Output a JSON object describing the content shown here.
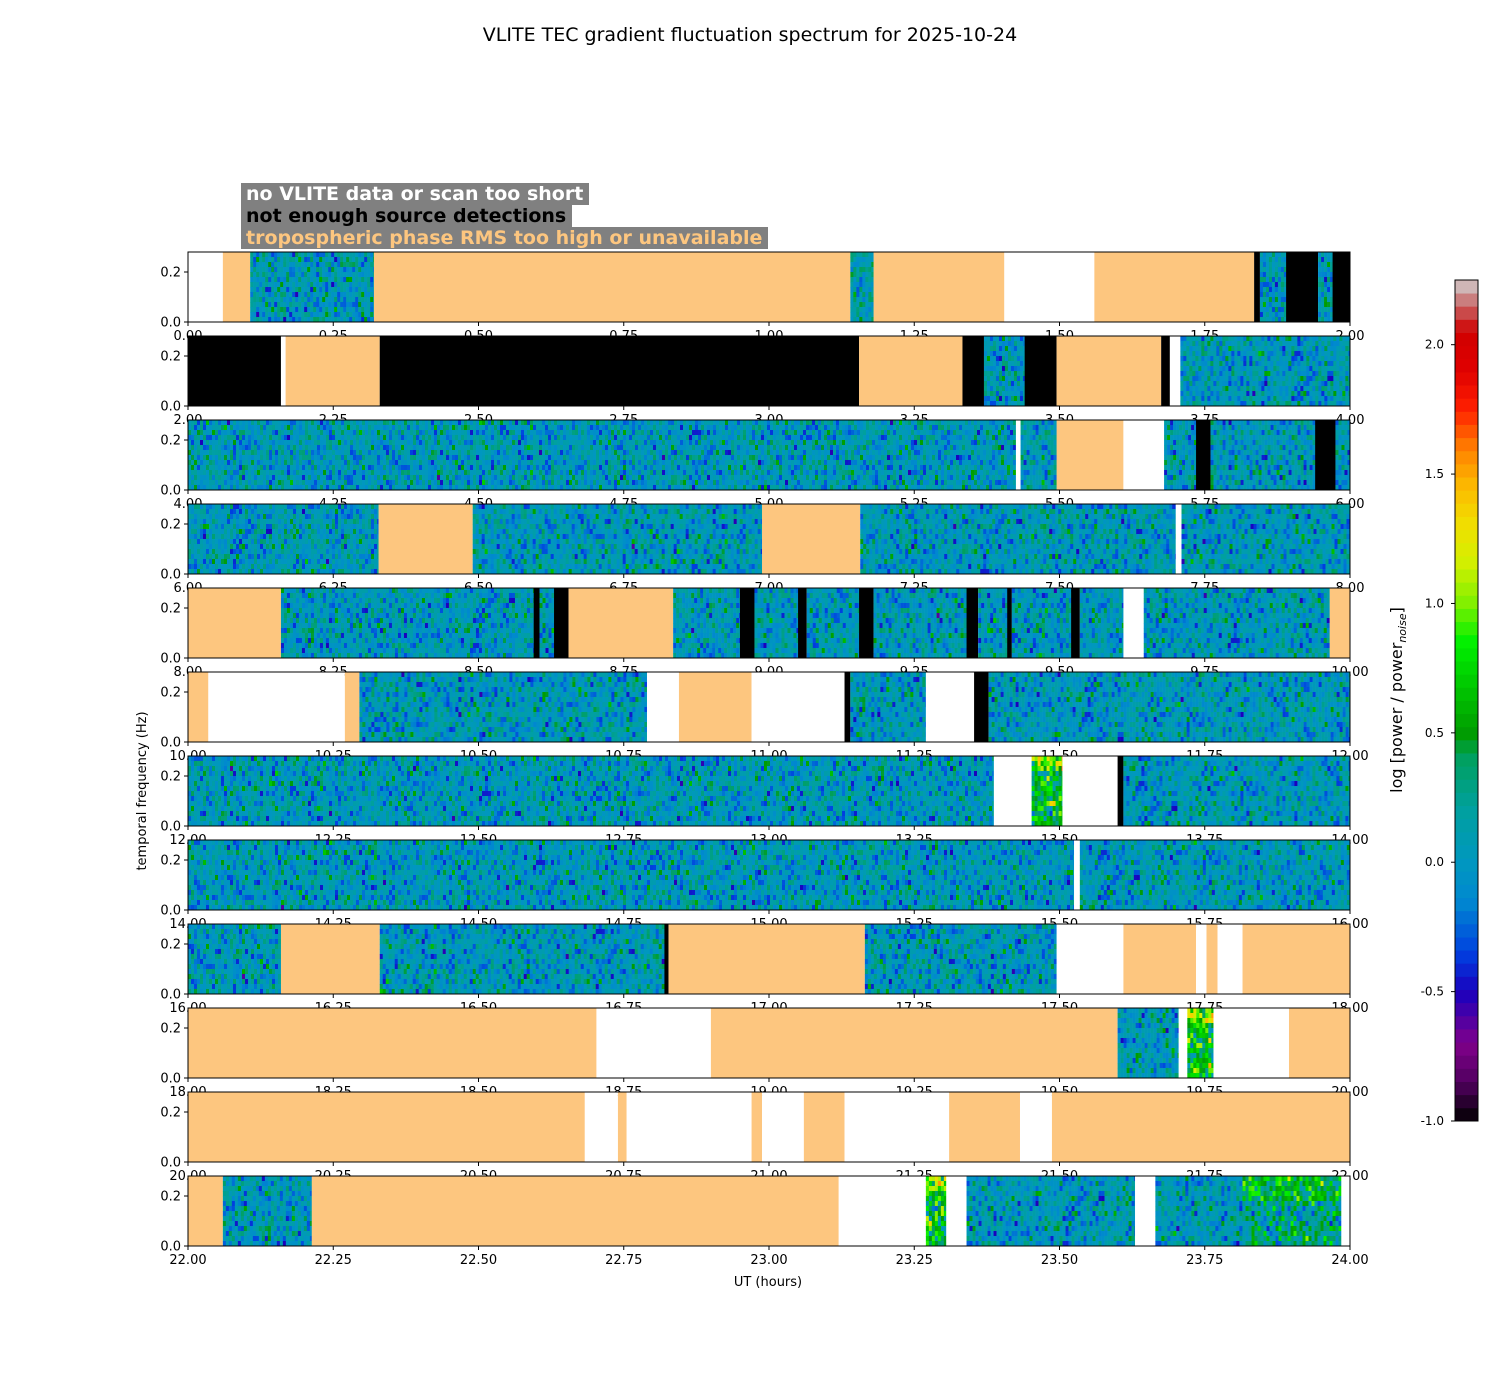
{
  "chart_data": {
    "type": "heatmap",
    "title": "VLITE TEC gradient fluctuation spectrum for 2025-10-24",
    "xlabel": "UT (hours)",
    "ylabel": "temporal frequency (Hz)",
    "colorbar_label": "log [power / power",
    "colorbar_label_sub": "noise",
    "colorbar_label_end": "]",
    "colorbar_range": [
      -1.0,
      2.25
    ],
    "colorbar_ticks": [
      "-1.0",
      "-0.5",
      "0.0",
      "0.5",
      "1.0",
      "1.5",
      "2.0"
    ],
    "colorbar_tick_values": [
      -1.0,
      -0.5,
      0.0,
      0.5,
      1.0,
      1.5,
      2.0
    ],
    "ylim": [
      0,
      0.28
    ],
    "y_ticks": [
      "0.0",
      "0.2"
    ],
    "y_tick_values": [
      0.0,
      0.2
    ],
    "legend": {
      "no_data": "no VLITE data or scan too short",
      "few_sources": "not enough source detections",
      "tropo": "tropospheric phase RMS too high or unavailable"
    },
    "category_colors": {
      "no_data": "#ffffff",
      "few_sources": "#000000",
      "tropo": "#fdc67f",
      "legend_box": "#808080"
    },
    "colormap": [
      [
        -1.0,
        "#000000"
      ],
      [
        -0.85,
        "#50005f"
      ],
      [
        -0.7,
        "#80008a"
      ],
      [
        -0.5,
        "#1a00bd"
      ],
      [
        -0.35,
        "#0040e0"
      ],
      [
        -0.15,
        "#0088d0"
      ],
      [
        0.0,
        "#0097c0"
      ],
      [
        0.2,
        "#00a0a0"
      ],
      [
        0.4,
        "#00a060"
      ],
      [
        0.5,
        "#009c00"
      ],
      [
        0.65,
        "#00c000"
      ],
      [
        0.85,
        "#00f000"
      ],
      [
        1.0,
        "#80f000"
      ],
      [
        1.15,
        "#d0f000"
      ],
      [
        1.3,
        "#f0e000"
      ],
      [
        1.45,
        "#fcbb00"
      ],
      [
        1.6,
        "#ff8000"
      ],
      [
        1.75,
        "#ff2000"
      ],
      [
        1.9,
        "#e00000"
      ],
      [
        2.05,
        "#d00000"
      ],
      [
        2.15,
        "#c86464"
      ],
      [
        2.25,
        "#d2d2d2"
      ]
    ],
    "panels": [
      {
        "xlim": [
          0.0,
          2.0
        ],
        "x_ticks": [
          "0.00",
          "0.25",
          "0.50",
          "0.75",
          "1.00",
          "1.25",
          "1.50",
          "1.75",
          "2.00"
        ],
        "segments": [
          [
            0.0,
            0.06,
            "no_data"
          ],
          [
            0.06,
            0.107,
            "tropo"
          ],
          [
            0.107,
            0.32,
            "data"
          ],
          [
            0.32,
            1.14,
            "tropo"
          ],
          [
            1.14,
            1.18,
            "data"
          ],
          [
            1.18,
            1.405,
            "tropo"
          ],
          [
            1.405,
            1.56,
            "no_data"
          ],
          [
            1.56,
            1.835,
            "tropo"
          ],
          [
            1.835,
            1.845,
            "few_sources"
          ],
          [
            1.845,
            1.89,
            "data"
          ],
          [
            1.89,
            1.945,
            "few_sources"
          ],
          [
            1.945,
            1.97,
            "data"
          ],
          [
            1.97,
            2.0,
            "few_sources"
          ]
        ]
      },
      {
        "xlim": [
          2.0,
          4.0
        ],
        "x_ticks": [
          "2.00",
          "2.25",
          "2.50",
          "2.75",
          "3.00",
          "3.25",
          "3.50",
          "3.75",
          "4.00"
        ],
        "segments": [
          [
            2.0,
            2.16,
            "few_sources"
          ],
          [
            2.16,
            2.168,
            "no_data"
          ],
          [
            2.168,
            2.33,
            "tropo"
          ],
          [
            2.33,
            3.155,
            "few_sources"
          ],
          [
            3.155,
            3.333,
            "tropo"
          ],
          [
            3.333,
            3.37,
            "few_sources"
          ],
          [
            3.37,
            3.44,
            "data"
          ],
          [
            3.44,
            3.495,
            "few_sources"
          ],
          [
            3.495,
            3.675,
            "tropo"
          ],
          [
            3.675,
            3.69,
            "few_sources"
          ],
          [
            3.69,
            3.708,
            "no_data"
          ],
          [
            3.708,
            4.0,
            "data"
          ]
        ]
      },
      {
        "xlim": [
          4.0,
          6.0
        ],
        "x_ticks": [
          "4.00",
          "4.25",
          "4.50",
          "4.75",
          "5.00",
          "5.25",
          "5.50",
          "5.75",
          "6.00"
        ],
        "segments": [
          [
            4.0,
            5.425,
            "data"
          ],
          [
            5.425,
            5.433,
            "no_data"
          ],
          [
            5.433,
            5.495,
            "data"
          ],
          [
            5.495,
            5.61,
            "tropo"
          ],
          [
            5.61,
            5.68,
            "no_data"
          ],
          [
            5.68,
            5.735,
            "data"
          ],
          [
            5.735,
            5.76,
            "few_sources"
          ],
          [
            5.76,
            5.94,
            "data"
          ],
          [
            5.94,
            5.975,
            "few_sources"
          ],
          [
            5.975,
            6.0,
            "data"
          ]
        ]
      },
      {
        "xlim": [
          6.0,
          8.0
        ],
        "x_ticks": [
          "6.00",
          "6.25",
          "6.50",
          "6.75",
          "7.00",
          "7.25",
          "7.50",
          "7.75",
          "8.00"
        ],
        "segments": [
          [
            6.0,
            6.328,
            "data"
          ],
          [
            6.328,
            6.49,
            "tropo"
          ],
          [
            6.49,
            6.988,
            "data"
          ],
          [
            6.988,
            7.157,
            "tropo"
          ],
          [
            7.157,
            7.7,
            "data"
          ],
          [
            7.7,
            7.71,
            "no_data"
          ],
          [
            7.71,
            8.0,
            "data"
          ]
        ]
      },
      {
        "xlim": [
          8.0,
          10.0
        ],
        "x_ticks": [
          "8.00",
          "8.25",
          "8.50",
          "8.75",
          "9.00",
          "9.25",
          "9.50",
          "9.75",
          "10.00"
        ],
        "segments": [
          [
            8.0,
            8.16,
            "tropo"
          ],
          [
            8.16,
            8.595,
            "data"
          ],
          [
            8.595,
            8.605,
            "few_sources"
          ],
          [
            8.605,
            8.63,
            "data"
          ],
          [
            8.63,
            8.655,
            "few_sources"
          ],
          [
            8.655,
            8.835,
            "tropo"
          ],
          [
            8.835,
            8.95,
            "data"
          ],
          [
            8.95,
            8.975,
            "few_sources"
          ],
          [
            8.975,
            9.05,
            "data"
          ],
          [
            9.05,
            9.065,
            "few_sources"
          ],
          [
            9.065,
            9.155,
            "data"
          ],
          [
            9.155,
            9.18,
            "few_sources"
          ],
          [
            9.18,
            9.34,
            "data"
          ],
          [
            9.34,
            9.36,
            "few_sources"
          ],
          [
            9.36,
            9.41,
            "data"
          ],
          [
            9.41,
            9.418,
            "few_sources"
          ],
          [
            9.418,
            9.52,
            "data"
          ],
          [
            9.52,
            9.535,
            "few_sources"
          ],
          [
            9.535,
            9.61,
            "data"
          ],
          [
            9.61,
            9.645,
            "no_data"
          ],
          [
            9.645,
            9.965,
            "data"
          ],
          [
            9.965,
            10.0,
            "tropo"
          ]
        ]
      },
      {
        "xlim": [
          10.0,
          12.0
        ],
        "x_ticks": [
          "10.00",
          "10.25",
          "10.50",
          "10.75",
          "11.00",
          "11.25",
          "11.50",
          "11.75",
          "12.00"
        ],
        "segments": [
          [
            10.0,
            10.035,
            "tropo"
          ],
          [
            10.035,
            10.27,
            "no_data"
          ],
          [
            10.27,
            10.295,
            "tropo"
          ],
          [
            10.295,
            10.79,
            "data"
          ],
          [
            10.79,
            10.845,
            "no_data"
          ],
          [
            10.845,
            10.97,
            "tropo"
          ],
          [
            10.97,
            11.13,
            "no_data"
          ],
          [
            11.13,
            11.14,
            "few_sources"
          ],
          [
            11.14,
            11.27,
            "data"
          ],
          [
            11.27,
            11.353,
            "no_data"
          ],
          [
            11.353,
            11.378,
            "few_sources"
          ],
          [
            11.378,
            12.0,
            "data"
          ]
        ]
      },
      {
        "xlim": [
          12.0,
          14.0
        ],
        "x_ticks": [
          "12.00",
          "12.25",
          "12.50",
          "12.75",
          "13.00",
          "13.25",
          "13.50",
          "13.75",
          "14.00"
        ],
        "segments": [
          [
            12.0,
            13.387,
            "data"
          ],
          [
            13.387,
            13.452,
            "no_data"
          ],
          [
            13.452,
            13.505,
            "data_hot"
          ],
          [
            13.505,
            13.6,
            "no_data"
          ],
          [
            13.6,
            13.61,
            "few_sources"
          ],
          [
            13.61,
            14.0,
            "data"
          ]
        ]
      },
      {
        "xlim": [
          14.0,
          16.0
        ],
        "x_ticks": [
          "14.00",
          "14.25",
          "14.50",
          "14.75",
          "15.00",
          "15.25",
          "15.50",
          "15.75",
          "16.00"
        ],
        "segments": [
          [
            14.0,
            15.525,
            "data"
          ],
          [
            15.525,
            15.535,
            "no_data"
          ],
          [
            15.535,
            16.0,
            "data"
          ]
        ]
      },
      {
        "xlim": [
          16.0,
          18.0
        ],
        "x_ticks": [
          "16.00",
          "16.25",
          "16.50",
          "16.75",
          "17.00",
          "17.25",
          "17.50",
          "17.75",
          "18.00"
        ],
        "segments": [
          [
            16.0,
            16.16,
            "data"
          ],
          [
            16.16,
            16.33,
            "tropo"
          ],
          [
            16.33,
            16.82,
            "data"
          ],
          [
            16.82,
            16.827,
            "few_sources"
          ],
          [
            16.827,
            17.165,
            "tropo"
          ],
          [
            17.165,
            17.495,
            "data"
          ],
          [
            17.495,
            17.61,
            "no_data"
          ],
          [
            17.61,
            17.735,
            "tropo"
          ],
          [
            17.735,
            17.753,
            "no_data"
          ],
          [
            17.753,
            17.772,
            "tropo"
          ],
          [
            17.772,
            17.815,
            "no_data"
          ],
          [
            17.815,
            18.0,
            "tropo"
          ]
        ]
      },
      {
        "xlim": [
          18.0,
          20.0
        ],
        "x_ticks": [
          "18.00",
          "18.25",
          "18.50",
          "18.75",
          "19.00",
          "19.25",
          "19.50",
          "19.75",
          "20.00"
        ],
        "segments": [
          [
            18.0,
            18.703,
            "tropo"
          ],
          [
            18.703,
            18.9,
            "no_data"
          ],
          [
            18.9,
            19.6,
            "tropo"
          ],
          [
            19.6,
            19.705,
            "data"
          ],
          [
            19.705,
            19.72,
            "no_data"
          ],
          [
            19.72,
            19.765,
            "data_hot"
          ],
          [
            19.765,
            19.895,
            "no_data"
          ],
          [
            19.895,
            20.0,
            "tropo"
          ]
        ]
      },
      {
        "xlim": [
          20.0,
          22.0
        ],
        "x_ticks": [
          "20.00",
          "20.25",
          "20.50",
          "20.75",
          "21.00",
          "21.25",
          "21.50",
          "21.75",
          "22.00"
        ],
        "segments": [
          [
            20.0,
            20.683,
            "tropo"
          ],
          [
            20.683,
            20.74,
            "no_data"
          ],
          [
            20.74,
            20.755,
            "tropo"
          ],
          [
            20.755,
            20.97,
            "no_data"
          ],
          [
            20.97,
            20.988,
            "tropo"
          ],
          [
            20.988,
            21.06,
            "no_data"
          ],
          [
            21.06,
            21.13,
            "tropo"
          ],
          [
            21.13,
            21.31,
            "no_data"
          ],
          [
            21.31,
            21.432,
            "tropo"
          ],
          [
            21.432,
            21.487,
            "no_data"
          ],
          [
            21.487,
            22.0,
            "tropo"
          ]
        ]
      },
      {
        "xlim": [
          22.0,
          24.0
        ],
        "x_ticks": [
          "22.00",
          "22.25",
          "22.50",
          "22.75",
          "23.00",
          "23.25",
          "23.50",
          "23.75",
          "24.00"
        ],
        "segments": [
          [
            22.0,
            22.06,
            "tropo"
          ],
          [
            22.06,
            22.213,
            "data"
          ],
          [
            22.213,
            23.12,
            "tropo"
          ],
          [
            23.12,
            23.27,
            "no_data"
          ],
          [
            23.27,
            23.305,
            "data_hot"
          ],
          [
            23.305,
            23.34,
            "no_data"
          ],
          [
            23.34,
            23.63,
            "data"
          ],
          [
            23.63,
            23.665,
            "no_data"
          ],
          [
            23.665,
            23.815,
            "data"
          ],
          [
            23.815,
            23.985,
            "data_warm"
          ],
          [
            23.985,
            24.0,
            "no_data"
          ]
        ]
      }
    ]
  }
}
